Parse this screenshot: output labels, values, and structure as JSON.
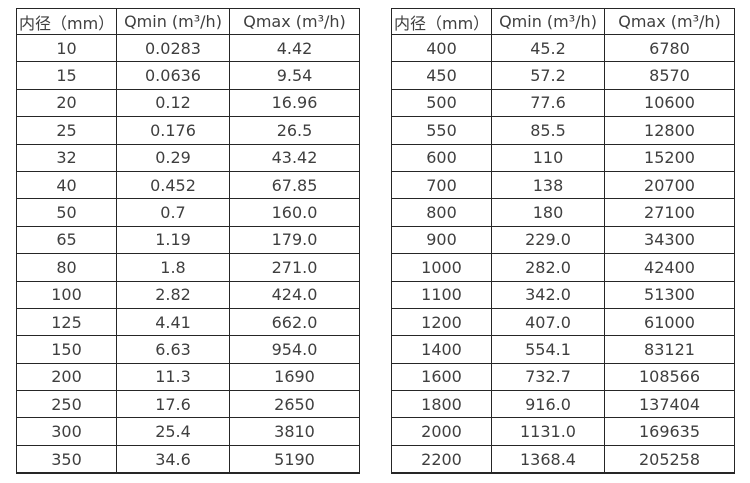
{
  "page": {
    "background_color": "#ffffff",
    "border_color": "#262626",
    "text_color": "#3f3f3f"
  },
  "tables": [
    {
      "name": "flow-table-left",
      "headers": [
        "内径（mm）",
        "Qmin (m³/h)",
        "Qmax (m³/h)"
      ],
      "rows": [
        [
          "10",
          "0.0283",
          "4.42"
        ],
        [
          "15",
          "0.0636",
          "9.54"
        ],
        [
          "20",
          "0.12",
          "16.96"
        ],
        [
          "25",
          "0.176",
          "26.5"
        ],
        [
          "32",
          "0.29",
          "43.42"
        ],
        [
          "40",
          "0.452",
          "67.85"
        ],
        [
          "50",
          "0.7",
          "160.0"
        ],
        [
          "65",
          "1.19",
          "179.0"
        ],
        [
          "80",
          "1.8",
          "271.0"
        ],
        [
          "100",
          "2.82",
          "424.0"
        ],
        [
          "125",
          "4.41",
          "662.0"
        ],
        [
          "150",
          "6.63",
          "954.0"
        ],
        [
          "200",
          "11.3",
          "1690"
        ],
        [
          "250",
          "17.6",
          "2650"
        ],
        [
          "300",
          "25.4",
          "3810"
        ],
        [
          "350",
          "34.6",
          "5190"
        ]
      ]
    },
    {
      "name": "flow-table-right",
      "headers": [
        "内径（mm）",
        "Qmin (m³/h)",
        "Qmax (m³/h)"
      ],
      "rows": [
        [
          "400",
          "45.2",
          "6780"
        ],
        [
          "450",
          "57.2",
          "8570"
        ],
        [
          "500",
          "77.6",
          "10600"
        ],
        [
          "550",
          "85.5",
          "12800"
        ],
        [
          "600",
          "110",
          "15200"
        ],
        [
          "700",
          "138",
          "20700"
        ],
        [
          "800",
          "180",
          "27100"
        ],
        [
          "900",
          "229.0",
          "34300"
        ],
        [
          "1000",
          "282.0",
          "42400"
        ],
        [
          "1100",
          "342.0",
          "51300"
        ],
        [
          "1200",
          "407.0",
          "61000"
        ],
        [
          "1400",
          "554.1",
          "83121"
        ],
        [
          "1600",
          "732.7",
          "108566"
        ],
        [
          "1800",
          "916.0",
          "137404"
        ],
        [
          "2000",
          "1131.0",
          "169635"
        ],
        [
          "2200",
          "1368.4",
          "205258"
        ]
      ]
    }
  ]
}
